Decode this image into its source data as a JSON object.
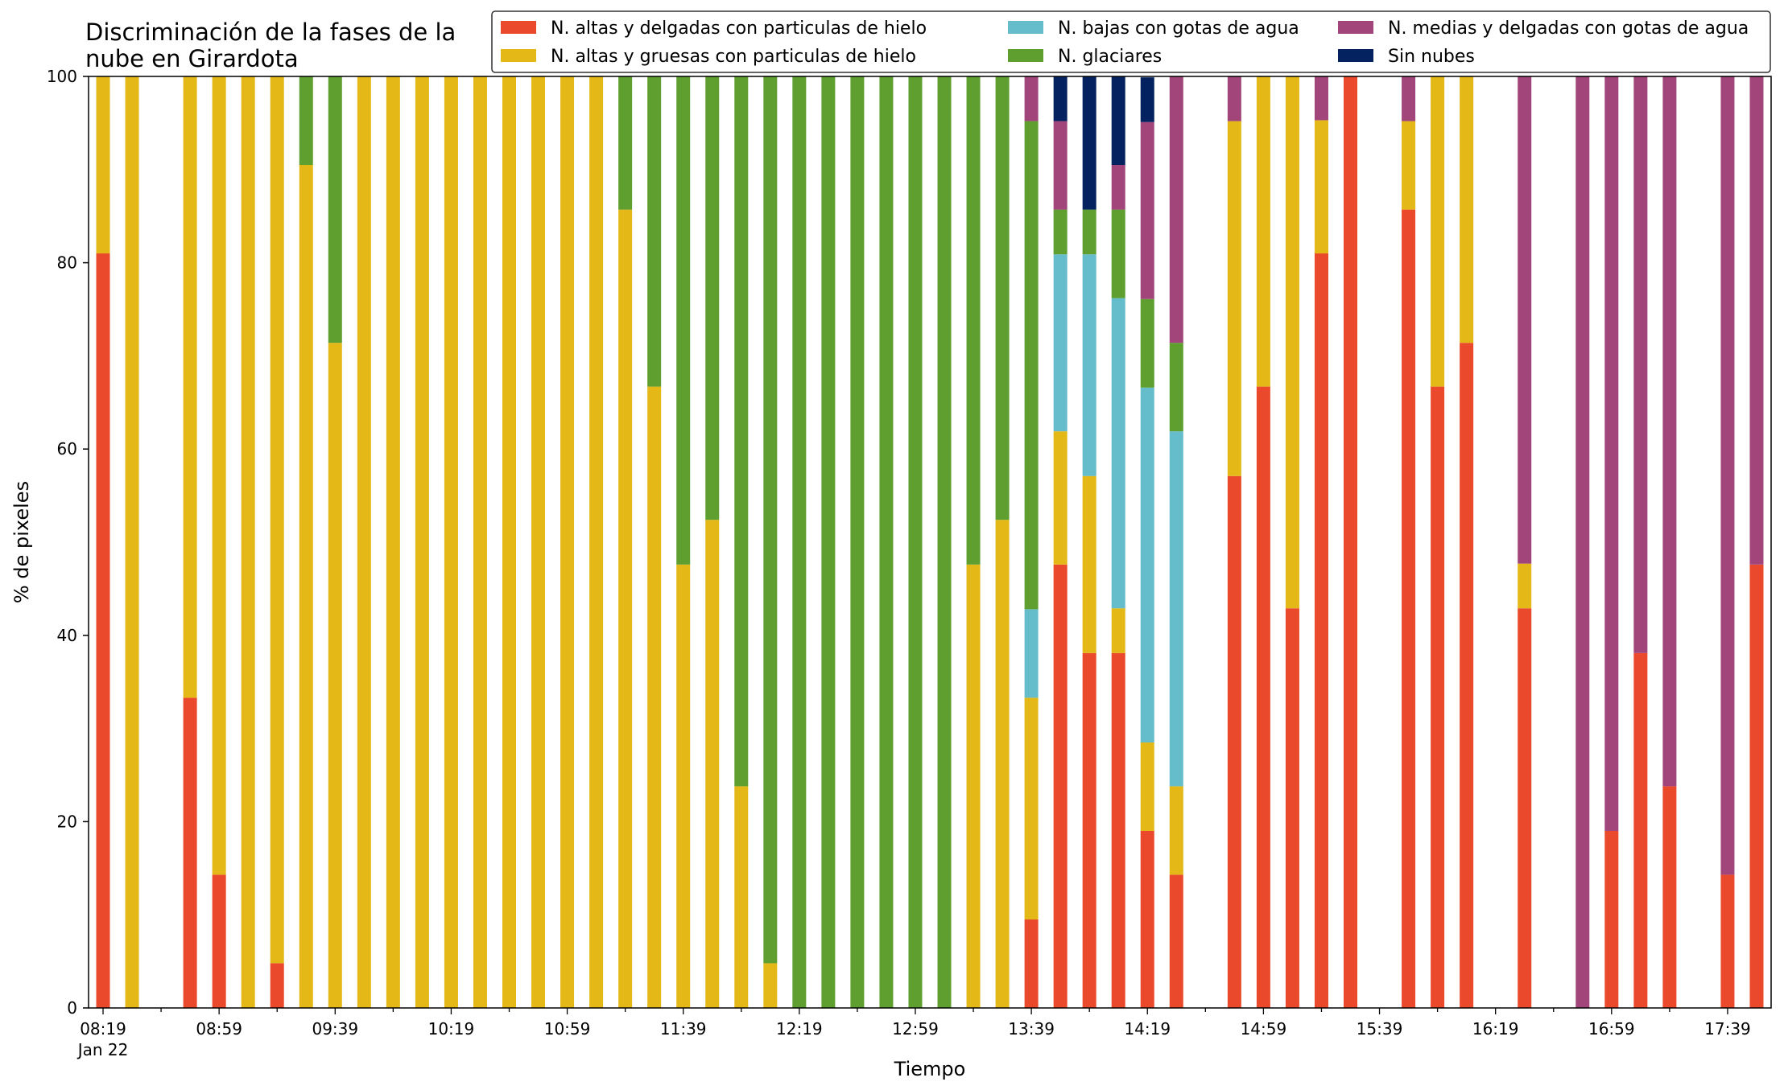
{
  "chart_data": {
    "type": "bar",
    "stacked": true,
    "title": "Discriminación de la fases de la\nnube en Girardota",
    "xlabel": "Tiempo",
    "ylabel": "% de pixeles",
    "ylim": [
      0,
      100
    ],
    "yticks": [
      0,
      20,
      40,
      60,
      80,
      100
    ],
    "xlim": [
      "08:14",
      "17:54"
    ],
    "xticks": [
      "08:19",
      "08:59",
      "09:39",
      "10:19",
      "10:59",
      "11:39",
      "12:19",
      "12:59",
      "13:39",
      "14:19",
      "14:59",
      "15:39",
      "16:19",
      "16:59",
      "17:39"
    ],
    "xtick_sublabel": "Jan 22",
    "legend_placement": "top-right",
    "series": [
      {
        "name": "N. altas y delgadas con particulas de hielo",
        "color": "#EA4A2B"
      },
      {
        "name": "N. altas y gruesas con particulas de hielo",
        "color": "#E4B817"
      },
      {
        "name": "N. bajas con gotas de agua",
        "color": "#65BCCB"
      },
      {
        "name": "N. glaciares",
        "color": "#5E9F2F"
      },
      {
        "name": "N. medias y delgadas con gotas de agua",
        "color": "#A1457B"
      },
      {
        "name": "Sin nubes",
        "color": "#052260"
      }
    ],
    "bars": [
      {
        "x": "08:19",
        "values": [
          81,
          19,
          0,
          0,
          0,
          0
        ]
      },
      {
        "x": "08:29",
        "values": [
          0,
          100,
          0,
          0,
          0,
          0
        ]
      },
      {
        "x": "08:49",
        "values": [
          33.3,
          66.7,
          0,
          0,
          0,
          0
        ]
      },
      {
        "x": "08:59",
        "values": [
          14.3,
          85.7,
          0,
          0,
          0,
          0
        ]
      },
      {
        "x": "09:09",
        "values": [
          0,
          100,
          0,
          0,
          0,
          0
        ]
      },
      {
        "x": "09:19",
        "values": [
          4.8,
          95.2,
          0,
          0,
          0,
          0
        ]
      },
      {
        "x": "09:29",
        "values": [
          0,
          90.5,
          0,
          9.5,
          0,
          0
        ]
      },
      {
        "x": "09:39",
        "values": [
          0,
          71.4,
          0,
          28.6,
          0,
          0
        ]
      },
      {
        "x": "09:49",
        "values": [
          0,
          100,
          0,
          0,
          0,
          0
        ]
      },
      {
        "x": "09:59",
        "values": [
          0,
          100,
          0,
          0,
          0,
          0
        ]
      },
      {
        "x": "10:09",
        "values": [
          0,
          100,
          0,
          0,
          0,
          0
        ]
      },
      {
        "x": "10:19",
        "values": [
          0,
          100,
          0,
          0,
          0,
          0
        ]
      },
      {
        "x": "10:29",
        "values": [
          0,
          100,
          0,
          0,
          0,
          0
        ]
      },
      {
        "x": "10:39",
        "values": [
          0,
          100,
          0,
          0,
          0,
          0
        ]
      },
      {
        "x": "10:49",
        "values": [
          0,
          100,
          0,
          0,
          0,
          0
        ]
      },
      {
        "x": "10:59",
        "values": [
          0,
          100,
          0,
          0,
          0,
          0
        ]
      },
      {
        "x": "11:09",
        "values": [
          0,
          100,
          0,
          0,
          0,
          0
        ]
      },
      {
        "x": "11:19",
        "values": [
          0,
          85.7,
          0,
          14.3,
          0,
          0
        ]
      },
      {
        "x": "11:29",
        "values": [
          0,
          66.7,
          0,
          33.3,
          0,
          0
        ]
      },
      {
        "x": "11:39",
        "values": [
          0,
          47.6,
          0,
          52.4,
          0,
          0
        ]
      },
      {
        "x": "11:49",
        "values": [
          0,
          52.4,
          0,
          47.6,
          0,
          0
        ]
      },
      {
        "x": "11:59",
        "values": [
          0,
          23.8,
          0,
          76.2,
          0,
          0
        ]
      },
      {
        "x": "12:09",
        "values": [
          0,
          4.8,
          0,
          95.2,
          0,
          0
        ]
      },
      {
        "x": "12:19",
        "values": [
          0,
          0,
          0,
          100,
          0,
          0
        ]
      },
      {
        "x": "12:29",
        "values": [
          0,
          0,
          0,
          100,
          0,
          0
        ]
      },
      {
        "x": "12:39",
        "values": [
          0,
          0,
          0,
          100,
          0,
          0
        ]
      },
      {
        "x": "12:49",
        "values": [
          0,
          0,
          0,
          100,
          0,
          0
        ]
      },
      {
        "x": "12:59",
        "values": [
          0,
          0,
          0,
          100,
          0,
          0
        ]
      },
      {
        "x": "13:09",
        "values": [
          0,
          0,
          0,
          100,
          0,
          0
        ]
      },
      {
        "x": "13:19",
        "values": [
          0,
          47.6,
          0,
          52.4,
          0,
          0
        ]
      },
      {
        "x": "13:29",
        "values": [
          0,
          52.4,
          0,
          47.6,
          0,
          0
        ]
      },
      {
        "x": "13:39",
        "values": [
          9.5,
          23.8,
          9.5,
          52.4,
          4.8,
          0
        ]
      },
      {
        "x": "13:49",
        "values": [
          47.6,
          14.3,
          19,
          4.8,
          9.5,
          4.8
        ]
      },
      {
        "x": "13:59",
        "values": [
          38.1,
          19,
          23.8,
          4.8,
          0,
          14.3
        ]
      },
      {
        "x": "14:09",
        "values": [
          38.1,
          4.8,
          33.3,
          9.5,
          4.8,
          9.5
        ]
      },
      {
        "x": "14:19",
        "values": [
          19,
          9.5,
          38.1,
          9.5,
          19,
          4.8
        ]
      },
      {
        "x": "14:29",
        "values": [
          14.3,
          9.5,
          38.1,
          9.5,
          28.6,
          0
        ]
      },
      {
        "x": "14:49",
        "values": [
          57.1,
          38.1,
          0,
          0,
          4.8,
          0
        ]
      },
      {
        "x": "14:59",
        "values": [
          66.7,
          33.3,
          0,
          0,
          0,
          0
        ]
      },
      {
        "x": "15:09",
        "values": [
          42.9,
          57.1,
          0,
          0,
          0,
          0
        ]
      },
      {
        "x": "15:19",
        "values": [
          81,
          14.3,
          0,
          0,
          4.8,
          0
        ]
      },
      {
        "x": "15:29",
        "values": [
          100,
          0,
          0,
          0,
          0,
          0
        ]
      },
      {
        "x": "15:49",
        "values": [
          85.7,
          9.5,
          0,
          0,
          4.8,
          0
        ]
      },
      {
        "x": "15:59",
        "values": [
          66.7,
          33.3,
          0,
          0,
          0,
          0
        ]
      },
      {
        "x": "16:09",
        "values": [
          71.4,
          28.6,
          0,
          0,
          0,
          0
        ]
      },
      {
        "x": "16:29",
        "values": [
          42.9,
          4.8,
          0,
          0,
          52.4,
          0
        ]
      },
      {
        "x": "16:49",
        "values": [
          0,
          0,
          0,
          0,
          100,
          0
        ]
      },
      {
        "x": "16:59",
        "values": [
          19,
          0,
          0,
          0,
          81,
          0
        ]
      },
      {
        "x": "17:09",
        "values": [
          38.1,
          0,
          0,
          0,
          61.9,
          0
        ]
      },
      {
        "x": "17:19",
        "values": [
          23.8,
          0,
          0,
          0,
          76.2,
          0
        ]
      },
      {
        "x": "17:39",
        "values": [
          14.3,
          0,
          0,
          0,
          85.7,
          0
        ]
      },
      {
        "x": "17:49",
        "values": [
          47.6,
          0,
          0,
          0,
          52.4,
          0
        ]
      }
    ]
  }
}
